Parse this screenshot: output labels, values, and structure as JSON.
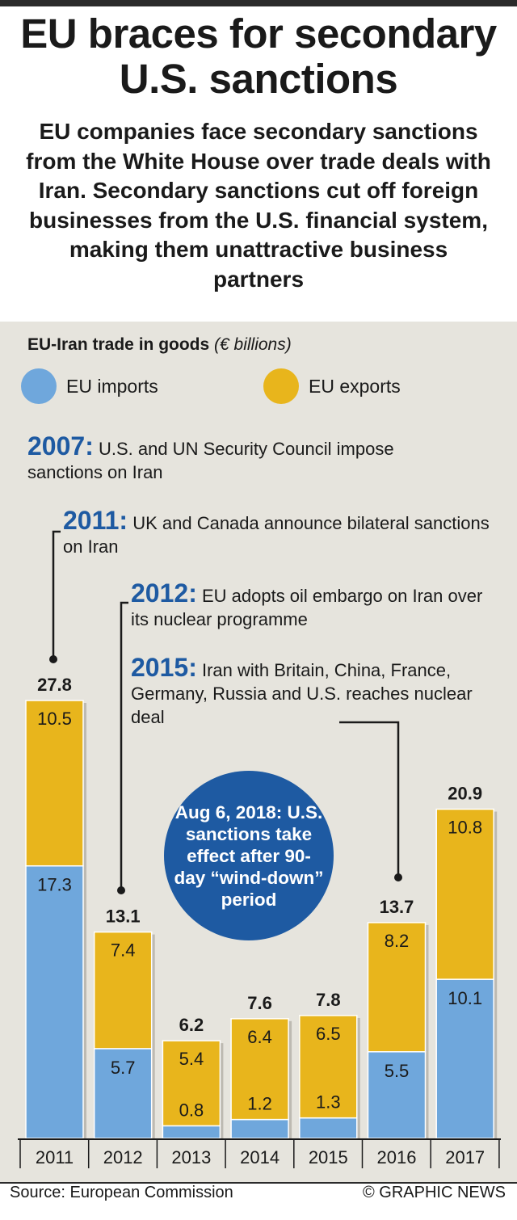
{
  "title": "EU braces for secondary U.S. sanctions",
  "subtitle": "EU companies face secondary sanctions from the White House over trade deals with Iran. Secondary sanctions cut off foreign businesses from the U.S. financial system, making them unattractive business partners",
  "chart_title_bold": "EU-Iran trade in goods",
  "chart_title_italic": "(€ billions)",
  "legend": [
    {
      "label": "EU imports",
      "color": "#6fa7dc"
    },
    {
      "label": "EU exports",
      "color": "#e8b51c"
    }
  ],
  "annotations": [
    {
      "year": "2007:",
      "text": "U.S. and UN Security Council impose sanctions on Iran"
    },
    {
      "year": "2011:",
      "text": "UK and Canada announce bilateral sanctions on Iran"
    },
    {
      "year": "2012:",
      "text": "EU adopts oil embargo on Iran over its nuclear programme"
    },
    {
      "year": "2015:",
      "text": "Iran with Britain, China, France, Germany, Russia and U.S. reaches nuclear deal"
    }
  ],
  "callout": "Aug 6, 2018: U.S. sanctions take effect after 90-day “wind-down” period",
  "source": "Source: European Commission",
  "credit": "© GRAPHIC NEWS",
  "colors": {
    "imports": "#6fa7dc",
    "exports": "#e8b51c",
    "accent": "#1e5aa2",
    "panel": "#e6e4dd"
  },
  "chart_data": {
    "type": "bar",
    "stacked": true,
    "categories": [
      "2011",
      "2012",
      "2013",
      "2014",
      "2015",
      "2016",
      "2017"
    ],
    "series": [
      {
        "name": "EU imports",
        "values": [
          17.3,
          5.7,
          0.8,
          1.2,
          1.3,
          5.5,
          10.1
        ],
        "labels": [
          "17.3",
          "5.7",
          "0.8",
          "1.2",
          "1.3",
          "5.5",
          "10.1"
        ]
      },
      {
        "name": "EU exports",
        "values": [
          10.5,
          7.4,
          5.4,
          6.4,
          6.5,
          8.2,
          10.8
        ],
        "labels": [
          "10.5",
          "7.4",
          "5.4",
          "6.4",
          "6.5",
          "8.2",
          "10.8"
        ]
      }
    ],
    "totals": [
      "27.8",
      "13.1",
      "6.2",
      "7.6",
      "7.8",
      "13.7",
      "20.9"
    ],
    "ylim": [
      0,
      27.8
    ]
  }
}
